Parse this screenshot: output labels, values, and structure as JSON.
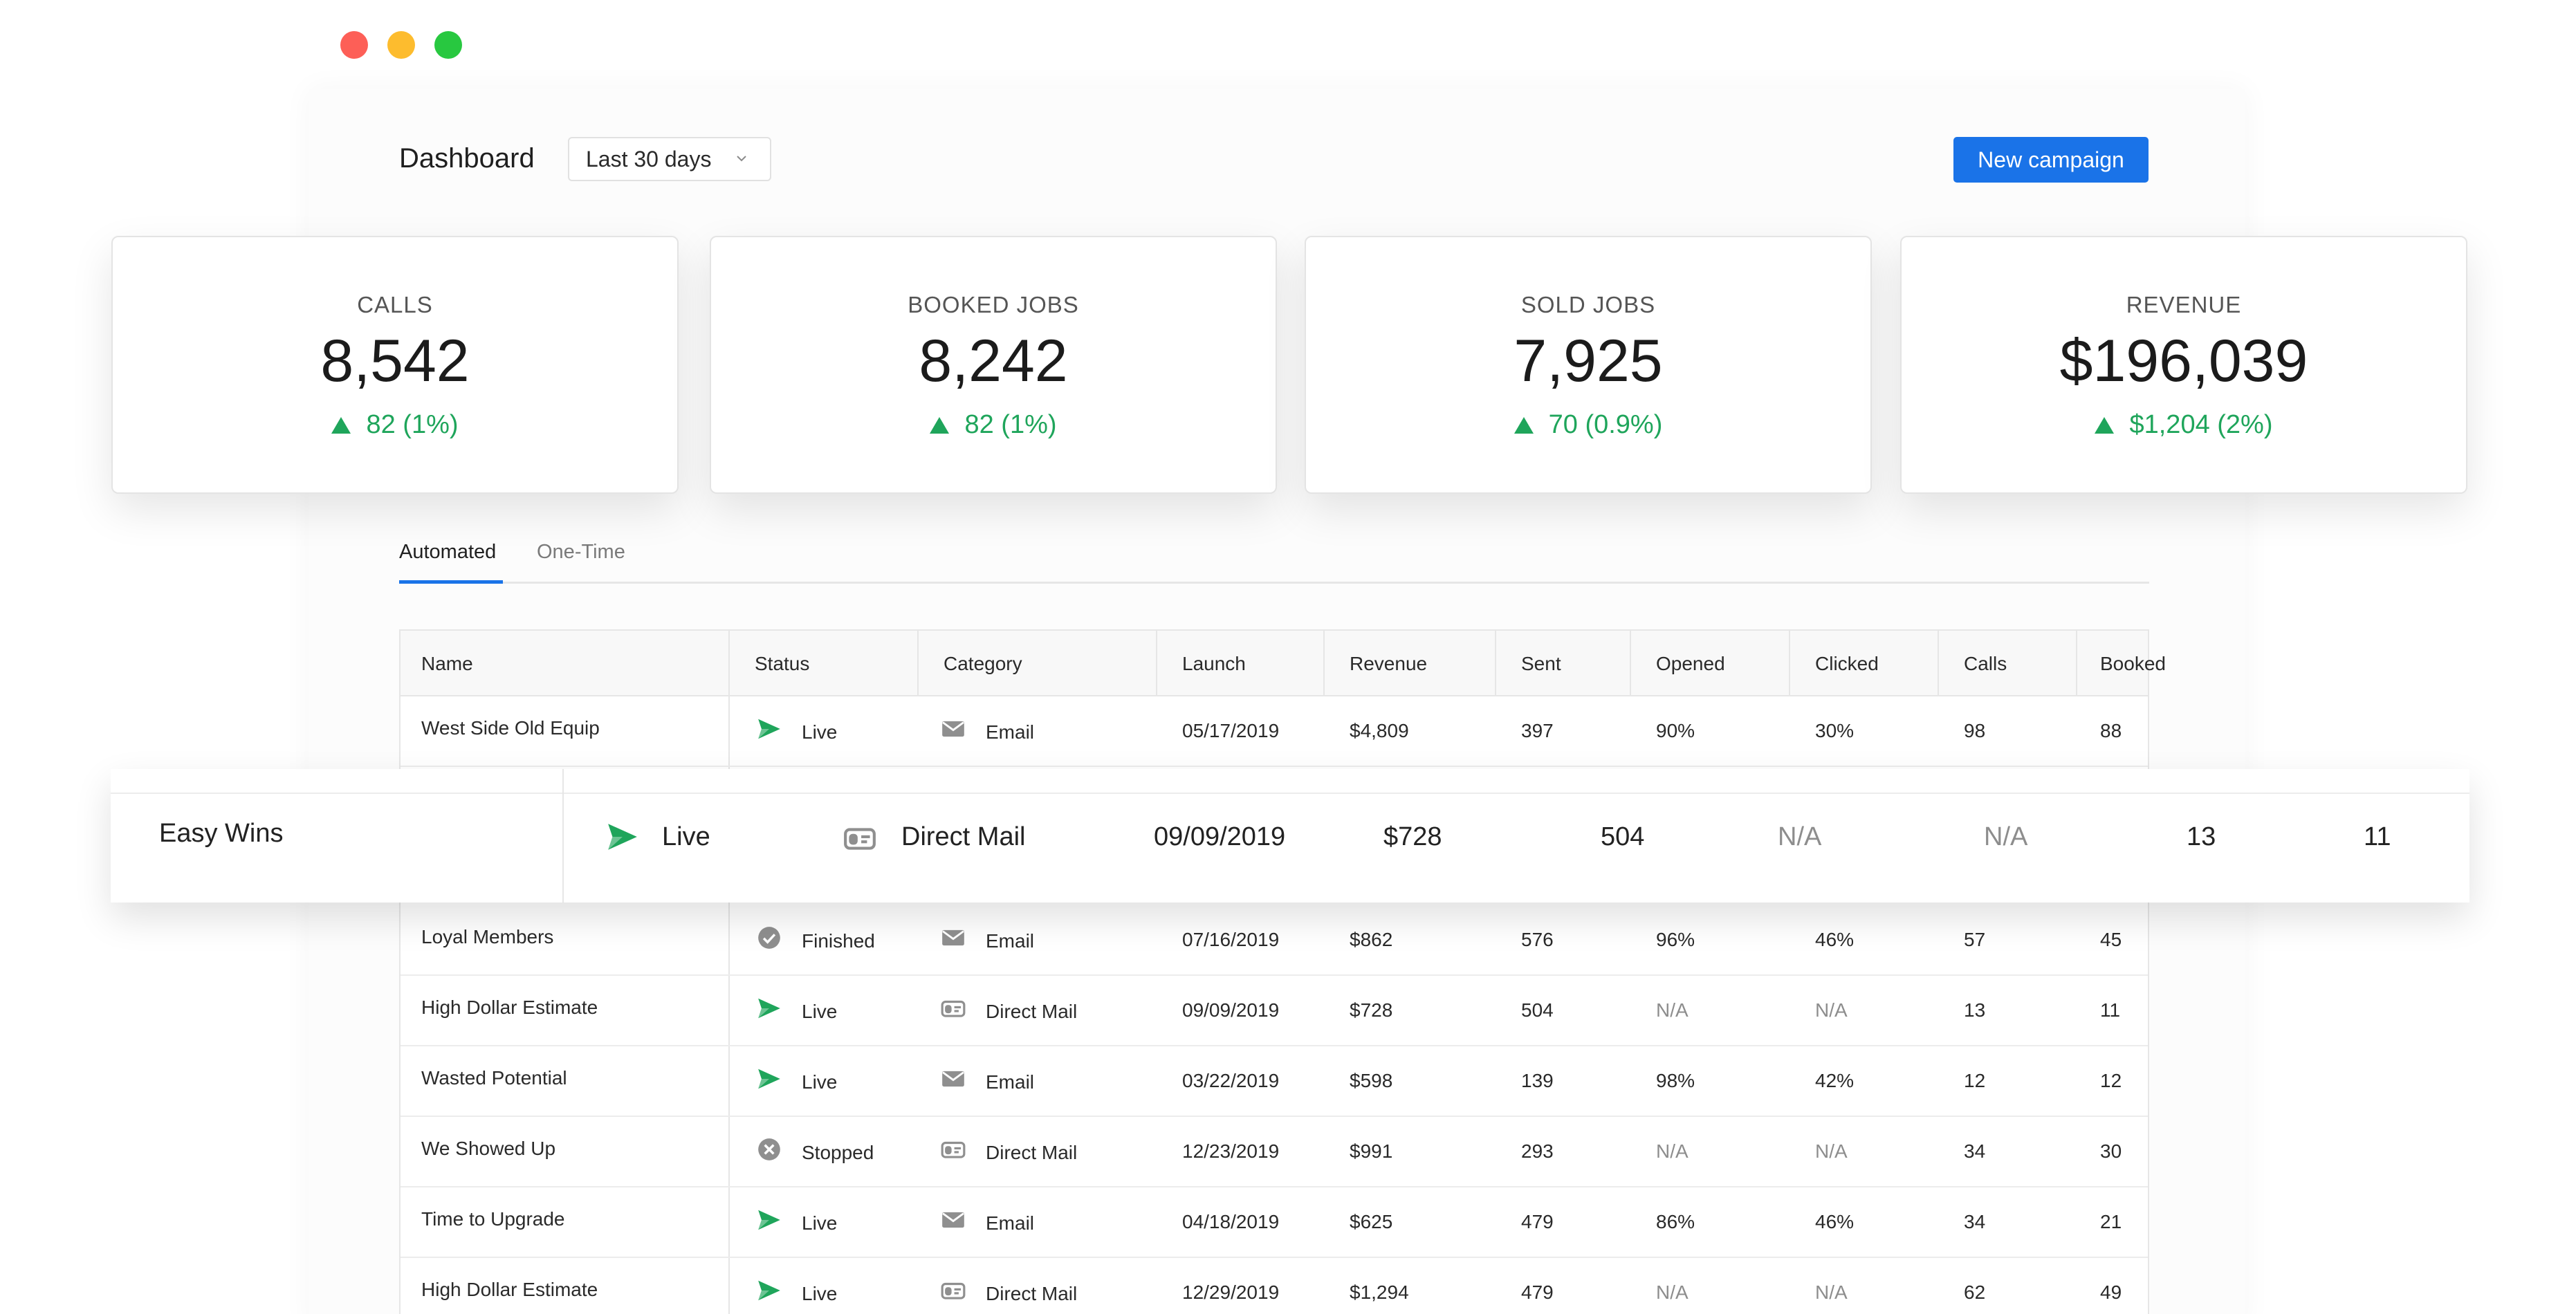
{
  "header": {
    "title": "Dashboard",
    "date_range": "Last 30 days",
    "new_campaign_label": "New campaign"
  },
  "metrics": [
    {
      "label": "CALLS",
      "value": "8,542",
      "delta": "82 (1%)"
    },
    {
      "label": "BOOKED JOBS",
      "value": "8,242",
      "delta": "82 (1%)"
    },
    {
      "label": "SOLD JOBS",
      "value": "7,925",
      "delta": "70 (0.9%)"
    },
    {
      "label": "REVENUE",
      "value": "$196,039",
      "delta": "$1,204 (2%)"
    }
  ],
  "colors": {
    "accent": "#1a73e8",
    "positive": "#1fa55b",
    "live": "#1fa55b",
    "muted_icon": "#8f8f8f"
  },
  "tabs": [
    {
      "label": "Automated",
      "active": true
    },
    {
      "label": "One-Time",
      "active": false
    }
  ],
  "table": {
    "columns": [
      "Name",
      "Status",
      "Category",
      "Launch",
      "Revenue",
      "Sent",
      "Opened",
      "Clicked",
      "Calls",
      "Booked"
    ],
    "rows": [
      {
        "name": "West Side Old Equip",
        "status": "Live",
        "status_icon": "send-icon",
        "category": "Email",
        "category_icon": "envelope-icon",
        "launch": "05/17/2019",
        "revenue": "$4,809",
        "sent": "397",
        "opened": "90%",
        "clicked": "30%",
        "calls": "98",
        "booked": "88"
      },
      {
        "name": "Easy Wins",
        "status": "Live",
        "status_icon": "send-icon",
        "category": "Direct Mail",
        "category_icon": "mailbox-icon",
        "launch": "09/09/2019",
        "revenue": "$728",
        "sent": "504",
        "opened": "N/A",
        "clicked": "N/A",
        "calls": "13",
        "booked": "11"
      },
      {
        "name": "Loyal Members",
        "status": "Finished",
        "status_icon": "check-circle-icon",
        "category": "Email",
        "category_icon": "envelope-icon",
        "launch": "07/16/2019",
        "revenue": "$862",
        "sent": "576",
        "opened": "96%",
        "clicked": "46%",
        "calls": "57",
        "booked": "45"
      },
      {
        "name": "High Dollar Estimate",
        "status": "Live",
        "status_icon": "send-icon",
        "category": "Direct Mail",
        "category_icon": "mailbox-icon",
        "launch": "09/09/2019",
        "revenue": "$728",
        "sent": "504",
        "opened": "N/A",
        "clicked": "N/A",
        "calls": "13",
        "booked": "11"
      },
      {
        "name": "Wasted Potential",
        "status": "Live",
        "status_icon": "send-icon",
        "category": "Email",
        "category_icon": "envelope-icon",
        "launch": "03/22/2019",
        "revenue": "$598",
        "sent": "139",
        "opened": "98%",
        "clicked": "42%",
        "calls": "12",
        "booked": "12"
      },
      {
        "name": "We Showed Up",
        "status": "Stopped",
        "status_icon": "x-circle-icon",
        "category": "Direct Mail",
        "category_icon": "mailbox-icon",
        "launch": "12/23/2019",
        "revenue": "$991",
        "sent": "293",
        "opened": "N/A",
        "clicked": "N/A",
        "calls": "34",
        "booked": "30"
      },
      {
        "name": "Time to Upgrade",
        "status": "Live",
        "status_icon": "send-icon",
        "category": "Email",
        "category_icon": "envelope-icon",
        "launch": "04/18/2019",
        "revenue": "$625",
        "sent": "479",
        "opened": "86%",
        "clicked": "46%",
        "calls": "34",
        "booked": "21"
      },
      {
        "name": "High Dollar Estimate",
        "status": "Live",
        "status_icon": "send-icon",
        "category": "Direct Mail",
        "category_icon": "mailbox-icon",
        "launch": "12/29/2019",
        "revenue": "$1,294",
        "sent": "479",
        "opened": "N/A",
        "clicked": "N/A",
        "calls": "62",
        "booked": "49"
      }
    ]
  }
}
